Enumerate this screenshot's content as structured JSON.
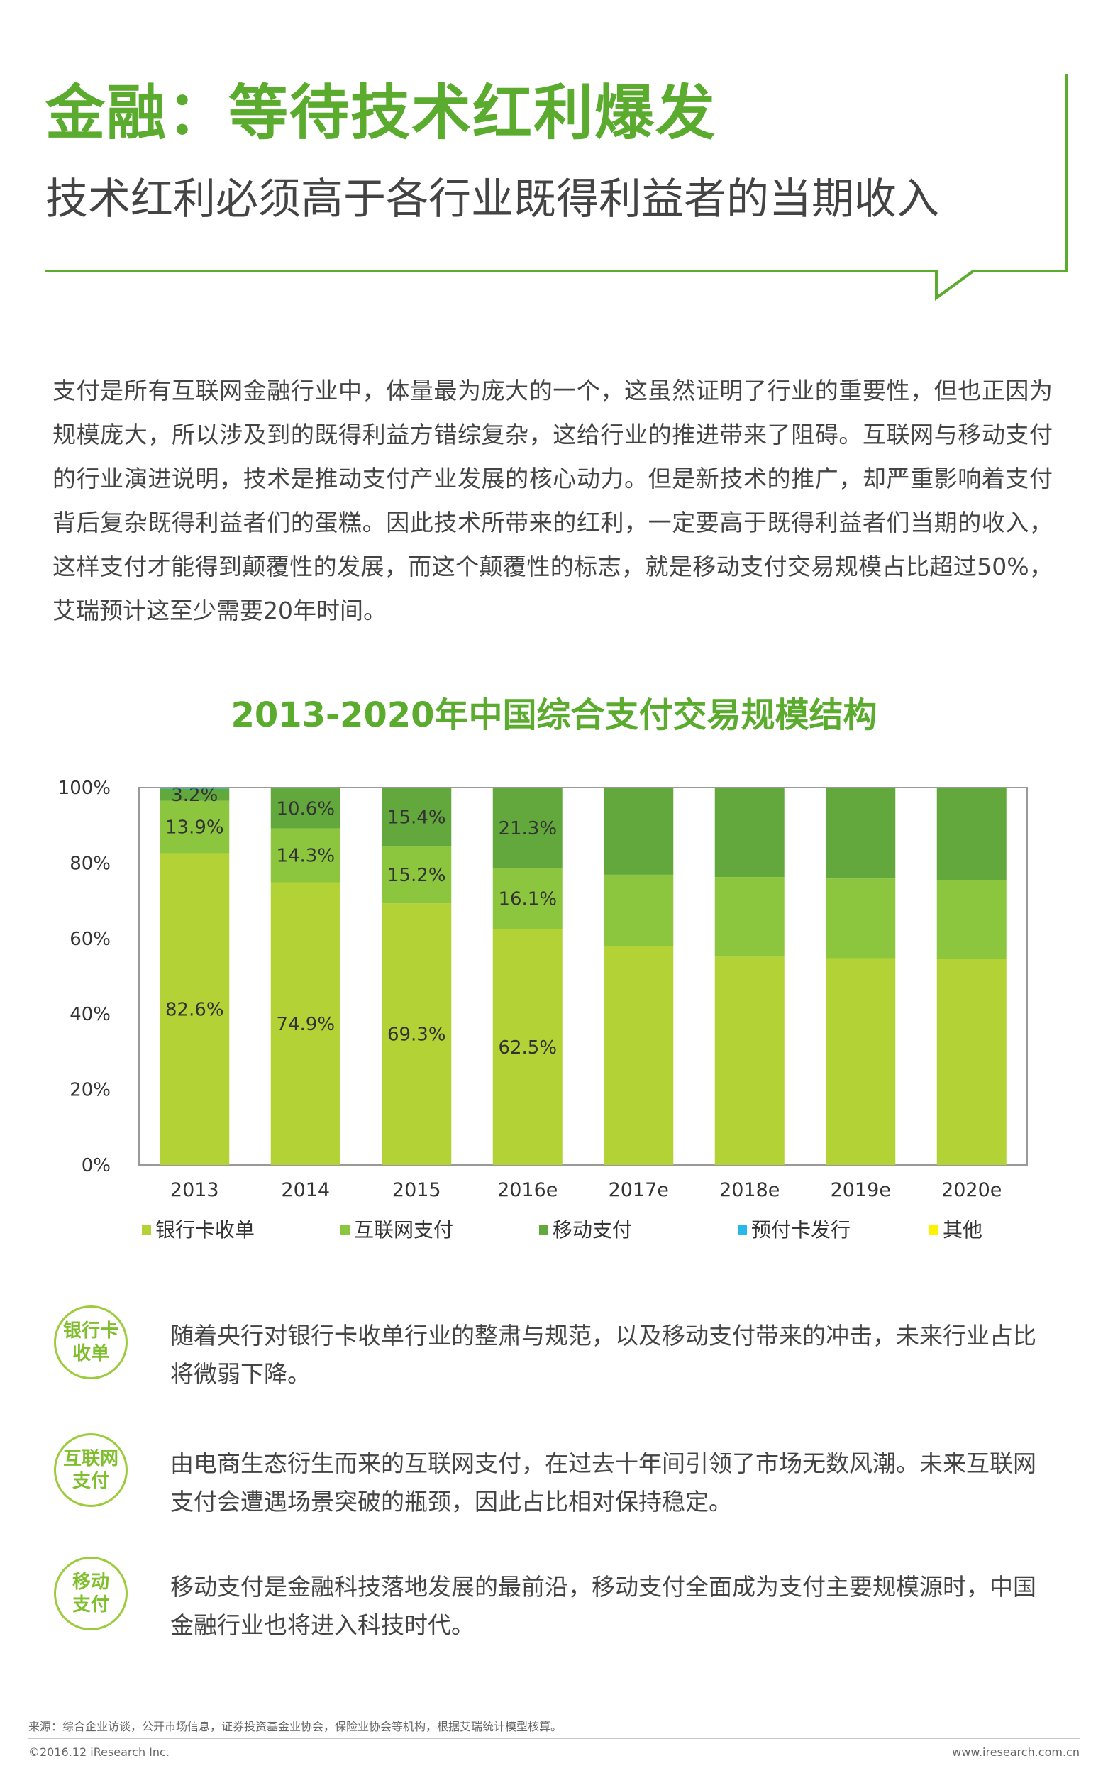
{
  "header": {
    "title": "金融：等待技术红利爆发",
    "subtitle": "技术红利必须高于各行业既得利益者的当期收入"
  },
  "intro_paragraph": "支付是所有互联网金融行业中，体量最为庞大的一个，这虽然证明了行业的重要性，但也正因为规模庞大，所以涉及到的既得利益方错综复杂，这给行业的推进带来了阻碍。互联网与移动支付的行业演进说明，技术是推动支付产业发展的核心动力。但是新技术的推广，却严重影响着支付背后复杂既得利益者们的蛋糕。因此技术所带来的红利，一定要高于既得利益者们当期的收入，这样支付才能得到颠覆性的发展，而这个颠覆性的标志，就是移动支付交易规模占比超过50%，艾瑞预计这至少需要20年时间。",
  "chart_data": {
    "type": "bar",
    "stacked": true,
    "title": "2013-2020年中国综合支付交易规模结构",
    "categories": [
      "2013",
      "2014",
      "2015",
      "2016e",
      "2017e",
      "2018e",
      "2019e",
      "2020e"
    ],
    "ylim": [
      0,
      100
    ],
    "yticks": [
      "0%",
      "20%",
      "40%",
      "60%",
      "80%",
      "100%"
    ],
    "legend_position": "bottom",
    "series": [
      {
        "name": "银行卡收单",
        "color": "#b2d235",
        "values": [
          82.6,
          74.9,
          69.3,
          62.5,
          58.0,
          55.2,
          54.8,
          54.6
        ],
        "labels": [
          "82.6%",
          "74.9%",
          "69.3%",
          "62.5%",
          "",
          "",
          "",
          ""
        ]
      },
      {
        "name": "互联网支付",
        "color": "#8cc63f",
        "values": [
          13.9,
          14.3,
          15.2,
          16.1,
          18.9,
          21.1,
          21.1,
          20.8
        ],
        "labels": [
          "13.9%",
          "14.3%",
          "15.2%",
          "16.1%",
          "",
          "",
          "",
          ""
        ]
      },
      {
        "name": "移动支付",
        "color": "#62a83c",
        "values": [
          3.2,
          10.6,
          15.4,
          21.3,
          23.0,
          23.6,
          24.0,
          24.5
        ],
        "labels": [
          "3.2%",
          "10.6%",
          "15.4%",
          "21.3%",
          "",
          "",
          "",
          ""
        ]
      },
      {
        "name": "预付卡发行",
        "color": "#29b6e8",
        "values": [
          0.2,
          0.1,
          0.05,
          0.05,
          0.05,
          0.05,
          0.05,
          0.05
        ],
        "labels": [
          "",
          "",
          "",
          "",
          "",
          "",
          "",
          ""
        ]
      },
      {
        "name": "其他",
        "color": "#fff200",
        "values": [
          0.1,
          0.1,
          0.05,
          0.05,
          0.05,
          0.05,
          0.05,
          0.05
        ],
        "labels": [
          "",
          "",
          "",
          "",
          "",
          "",
          "",
          ""
        ]
      }
    ]
  },
  "notes": [
    {
      "badge": "银行卡\n收单",
      "text": "随着央行对银行卡收单行业的整肃与规范，以及移动支付带来的冲击，未来行业占比将微弱下降。"
    },
    {
      "badge": "互联网\n支付",
      "text": "由电商生态衍生而来的互联网支付，在过去十年间引领了市场无数风潮。未来互联网支付会遭遇场景突破的瓶颈，因此占比相对保持稳定。"
    },
    {
      "badge": "移动\n支付",
      "text": "移动支付是金融科技落地发展的最前沿，移动支付全面成为支付主要规模源时，中国金融行业也将进入科技时代。"
    }
  ],
  "footer": {
    "source": "来源：综合企业访谈，公开市场信息，证券投资基金业协会，保险业协会等机构，根据艾瑞统计模型核算。",
    "copyright": "©2016.12 iResearch Inc.",
    "website": "www.iresearch.com.cn"
  },
  "colors": {
    "accent": "#5aab2e"
  }
}
